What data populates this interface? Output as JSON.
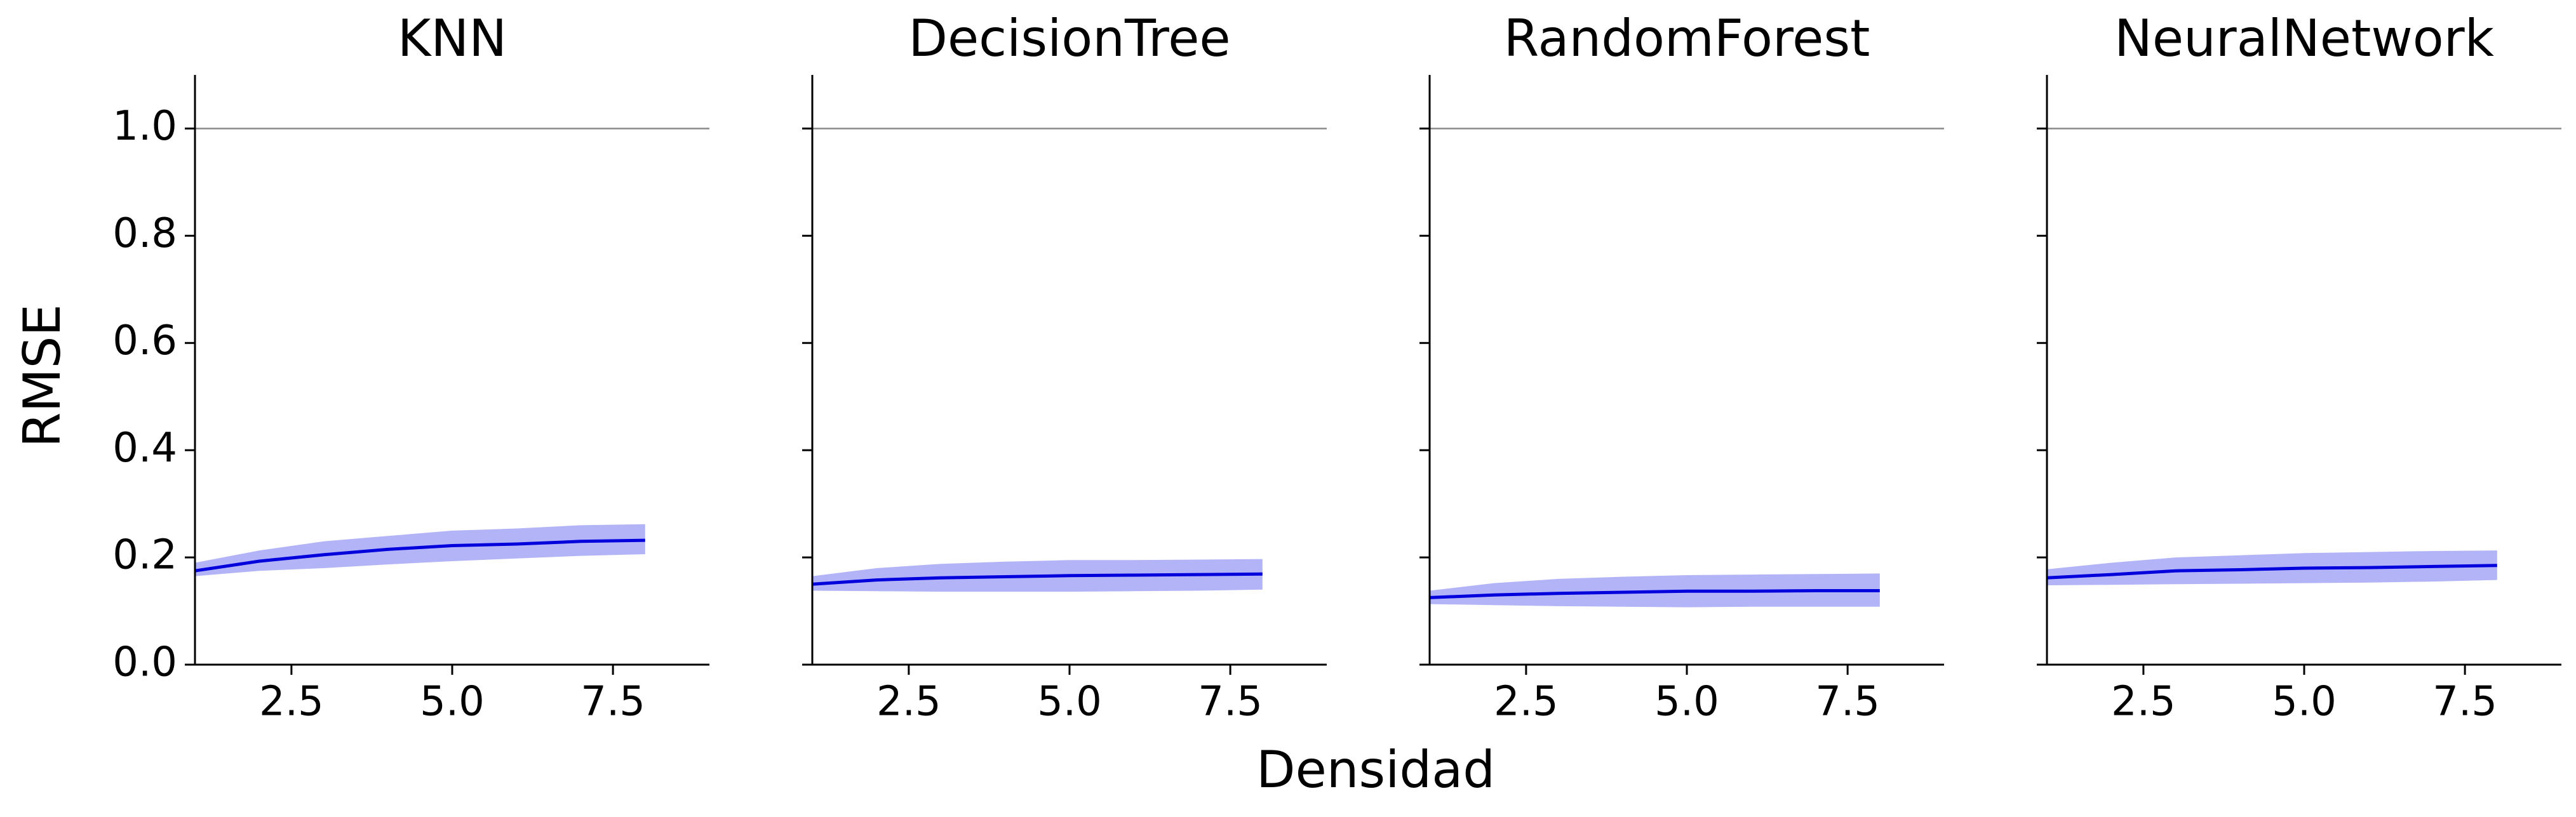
{
  "figure": {
    "xlabel": "Densidad",
    "ylabel": "RMSE"
  },
  "style": {
    "line_color": "#0000dd",
    "band_color": "#b3b3f8",
    "reference_line_color": "#888888",
    "axis_color": "#000000"
  },
  "chart_data": [
    {
      "type": "line",
      "title": "KNN",
      "x": [
        1,
        2,
        3,
        4,
        5,
        6,
        7,
        8
      ],
      "series": [
        {
          "values": [
            0.175,
            0.193,
            0.205,
            0.215,
            0.222,
            0.225,
            0.23,
            0.232
          ],
          "band_lower": [
            0.165,
            0.175,
            0.18,
            0.187,
            0.193,
            0.198,
            0.203,
            0.206
          ],
          "band_upper": [
            0.19,
            0.213,
            0.23,
            0.24,
            0.25,
            0.254,
            0.26,
            0.262
          ]
        }
      ],
      "reference_y": 1.0,
      "xlim": [
        1,
        9
      ],
      "ylim": [
        0,
        1.1
      ],
      "xticks": [
        "2.5",
        "5.0",
        "7.5"
      ],
      "xtick_values": [
        2.5,
        5.0,
        7.5
      ],
      "yticks": [
        "0.0",
        "0.2",
        "0.4",
        "0.6",
        "0.8",
        "1.0"
      ],
      "ytick_values": [
        0.0,
        0.2,
        0.4,
        0.6,
        0.8,
        1.0
      ],
      "show_ytick_labels": true,
      "grid": false
    },
    {
      "type": "line",
      "title": "DecisionTree",
      "x": [
        1,
        2,
        3,
        4,
        5,
        6,
        7,
        8
      ],
      "series": [
        {
          "values": [
            0.15,
            0.158,
            0.162,
            0.164,
            0.166,
            0.167,
            0.168,
            0.169
          ],
          "band_lower": [
            0.138,
            0.137,
            0.136,
            0.136,
            0.136,
            0.137,
            0.138,
            0.14
          ],
          "band_upper": [
            0.165,
            0.18,
            0.188,
            0.192,
            0.195,
            0.195,
            0.196,
            0.197
          ]
        }
      ],
      "reference_y": 1.0,
      "xlim": [
        1,
        9
      ],
      "ylim": [
        0,
        1.1
      ],
      "xticks": [
        "2.5",
        "5.0",
        "7.5"
      ],
      "xtick_values": [
        2.5,
        5.0,
        7.5
      ],
      "yticks": [
        "0.0",
        "0.2",
        "0.4",
        "0.6",
        "0.8",
        "1.0"
      ],
      "ytick_values": [
        0.0,
        0.2,
        0.4,
        0.6,
        0.8,
        1.0
      ],
      "show_ytick_labels": false,
      "grid": false
    },
    {
      "type": "line",
      "title": "RandomForest",
      "x": [
        1,
        2,
        3,
        4,
        5,
        6,
        7,
        8
      ],
      "series": [
        {
          "values": [
            0.125,
            0.13,
            0.133,
            0.135,
            0.137,
            0.137,
            0.138,
            0.138
          ],
          "band_lower": [
            0.113,
            0.111,
            0.109,
            0.108,
            0.107,
            0.108,
            0.108,
            0.108
          ],
          "band_upper": [
            0.138,
            0.152,
            0.16,
            0.164,
            0.167,
            0.168,
            0.169,
            0.17
          ]
        }
      ],
      "reference_y": 1.0,
      "xlim": [
        1,
        9
      ],
      "ylim": [
        0,
        1.1
      ],
      "xticks": [
        "2.5",
        "5.0",
        "7.5"
      ],
      "xtick_values": [
        2.5,
        5.0,
        7.5
      ],
      "yticks": [
        "0.0",
        "0.2",
        "0.4",
        "0.6",
        "0.8",
        "1.0"
      ],
      "ytick_values": [
        0.0,
        0.2,
        0.4,
        0.6,
        0.8,
        1.0
      ],
      "show_ytick_labels": false,
      "grid": false
    },
    {
      "type": "line",
      "title": "NeuralNetwork",
      "x": [
        1,
        2,
        3,
        4,
        5,
        6,
        7,
        8
      ],
      "series": [
        {
          "values": [
            0.162,
            0.168,
            0.175,
            0.177,
            0.18,
            0.181,
            0.183,
            0.185
          ],
          "band_lower": [
            0.148,
            0.149,
            0.15,
            0.151,
            0.152,
            0.153,
            0.155,
            0.158
          ],
          "band_upper": [
            0.178,
            0.19,
            0.2,
            0.204,
            0.208,
            0.21,
            0.212,
            0.213
          ]
        }
      ],
      "reference_y": 1.0,
      "xlim": [
        1,
        9
      ],
      "ylim": [
        0,
        1.1
      ],
      "xticks": [
        "2.5",
        "5.0",
        "7.5"
      ],
      "xtick_values": [
        2.5,
        5.0,
        7.5
      ],
      "yticks": [
        "0.0",
        "0.2",
        "0.4",
        "0.6",
        "0.8",
        "1.0"
      ],
      "ytick_values": [
        0.0,
        0.2,
        0.4,
        0.6,
        0.8,
        1.0
      ],
      "show_ytick_labels": false,
      "grid": false
    }
  ]
}
